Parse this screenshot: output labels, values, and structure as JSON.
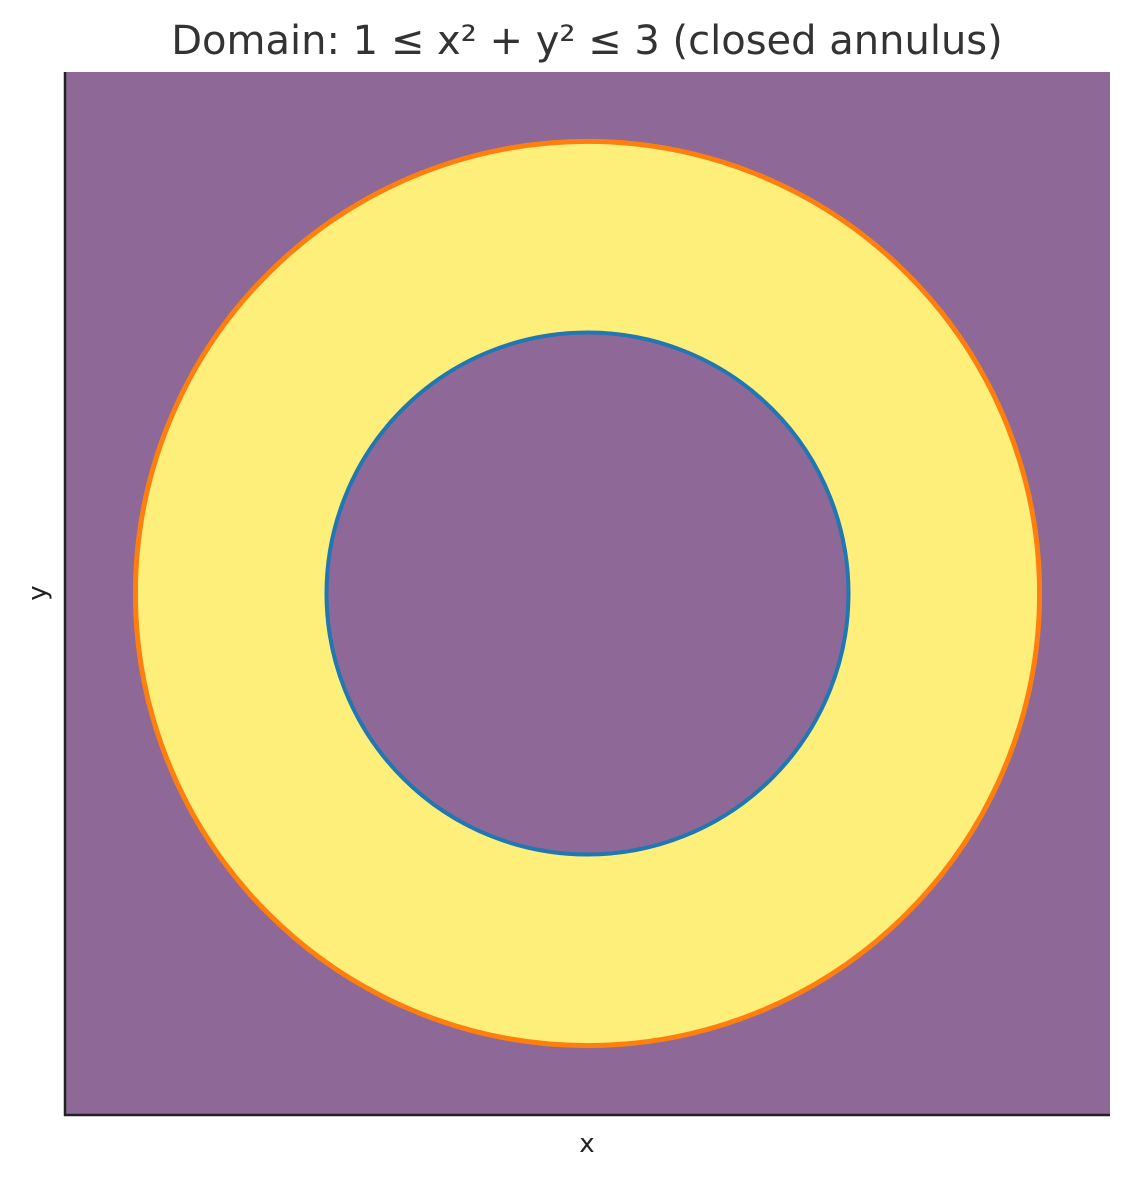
{
  "chart_data": {
    "type": "heatmap",
    "title": "Domain: 1 ≤ x² + y² ≤ 3 (closed annulus)",
    "xlabel": "x",
    "ylabel": "y",
    "xlim": [
      -2,
      2
    ],
    "ylim": [
      -2,
      2
    ],
    "grid": false,
    "ticks_shown": false,
    "region": {
      "inner_radius_squared": 1,
      "outer_radius_squared": 3,
      "inside_color": "#fdef7a",
      "outside_color": "#8e6897"
    },
    "boundaries": [
      {
        "equation": "x² + y² = 1",
        "radius": 1,
        "color": "#1f77b4"
      },
      {
        "equation": "x² + y² = 3",
        "radius": 1.7320508,
        "color": "#ff7f0e"
      }
    ]
  }
}
